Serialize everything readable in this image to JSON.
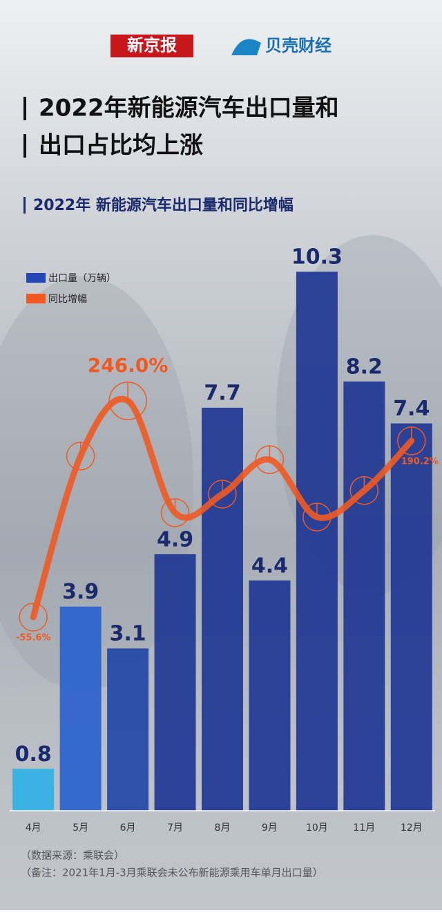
{
  "header": {
    "logo_left": "新京报",
    "logo_right": "贝壳财经"
  },
  "chart_data": {
    "type": "bar_line",
    "title_lines": [
      "2022年新能源汽车出口量和",
      "出口占比均上涨"
    ],
    "subtitle": "2022年 新能源汽车出口量和同比增幅",
    "categories": [
      "4月",
      "5月",
      "6月",
      "7月",
      "8月",
      "9月",
      "10月",
      "11月",
      "12月"
    ],
    "series": [
      {
        "name": "出口量（万辆）",
        "color": "#2447b8",
        "colors": [
          "#2fb1e6",
          "#2a62cc",
          "#2347a8",
          "#1f3794",
          "#1f3794",
          "#1f3794",
          "#1f3794",
          "#1f3794",
          "#1f3794"
        ],
        "values": [
          0.8,
          3.9,
          3.1,
          4.9,
          7.7,
          4.4,
          10.3,
          8.2,
          7.4
        ]
      },
      {
        "name": "同比增幅",
        "color": "#f05a22",
        "axis": "y2",
        "values": [
          -55.6,
          169,
          246.0,
          90,
          116,
          164,
          84,
          121,
          190.2
        ],
        "value_labels": [
          "-55.6%",
          null,
          "246.0%",
          null,
          null,
          null,
          null,
          null,
          "190.2%"
        ]
      }
    ],
    "notes": [
      "（数据来源：乘联会）",
      "（备注：2021年1月-3月乘联会未公布新能源乘用车单月出口量）"
    ]
  }
}
